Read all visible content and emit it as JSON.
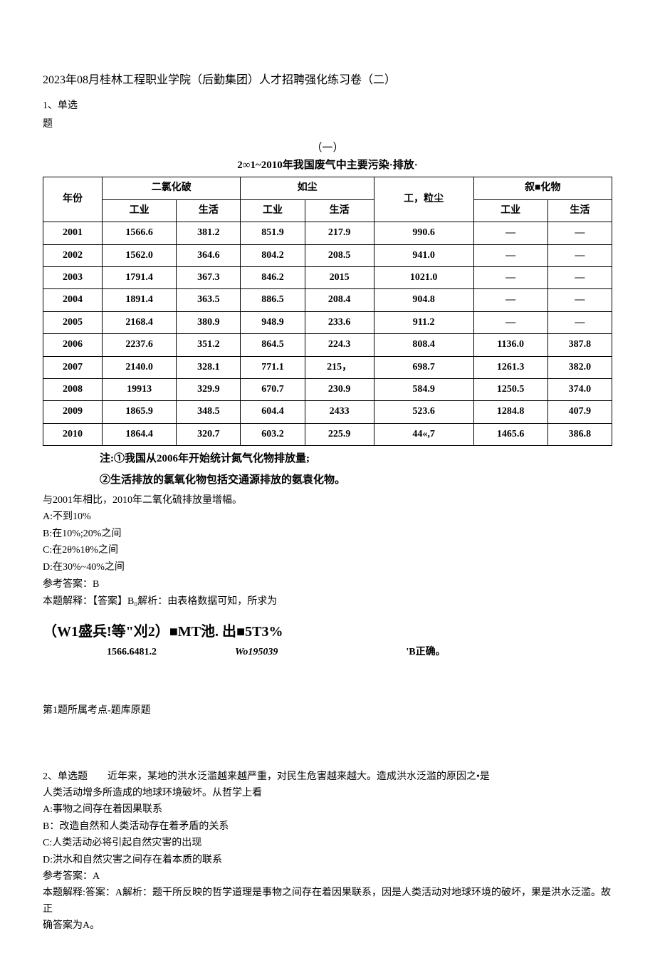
{
  "title": "2023年08月桂林工程职业学院（后勤集团）人才招聘强化练习卷（二）",
  "q1": {
    "label_a": "1、单选",
    "label_b": "题",
    "section_no": "（一）",
    "table_title": "2∞1~2010年我国废气中主要污染·排放·",
    "headers": {
      "year": "年份",
      "so2": "二氯化破",
      "dust": "如尘",
      "industrial_dust": "工，粒尘",
      "nox": "叙■化物",
      "industry": "工业",
      "life": "生活"
    },
    "rows": [
      {
        "year": "2001",
        "so2_i": "1566.6",
        "so2_l": "381.2",
        "d_i": "851.9",
        "d_l": "217.9",
        "id": "990.6",
        "n_i": "—",
        "n_l": "—"
      },
      {
        "year": "2002",
        "so2_i": "1562.0",
        "so2_l": "364.6",
        "d_i": "804.2",
        "d_l": "208.5",
        "id": "941.0",
        "n_i": "—",
        "n_l": "—"
      },
      {
        "year": "2003",
        "so2_i": "1791.4",
        "so2_l": "367.3",
        "d_i": "846.2",
        "d_l": "2015",
        "id": "1021.0",
        "n_i": "—",
        "n_l": "—"
      },
      {
        "year": "2004",
        "so2_i": "1891.4",
        "so2_l": "363.5",
        "d_i": "886.5",
        "d_l": "208.4",
        "id": "904.8",
        "n_i": "—",
        "n_l": "—"
      },
      {
        "year": "2005",
        "so2_i": "2168.4",
        "so2_l": "380.9",
        "d_i": "948.9",
        "d_l": "233.6",
        "id": "911.2",
        "n_i": "—",
        "n_l": "—"
      },
      {
        "year": "2006",
        "so2_i": "2237.6",
        "so2_l": "351.2",
        "d_i": "864.5",
        "d_l": "224.3",
        "id": "808.4",
        "n_i": "1136.0",
        "n_l": "387.8"
      },
      {
        "year": "2007",
        "so2_i": "2140.0",
        "so2_l": "328.1",
        "d_i": "771.1",
        "d_l": "215，",
        "id": "698.7",
        "n_i": "1261.3",
        "n_l": "382.0"
      },
      {
        "year": "2008",
        "so2_i": "19913",
        "so2_l": "329.9",
        "d_i": "670.7",
        "d_l": "230.9",
        "id": "584.9",
        "n_i": "1250.5",
        "n_l": "374.0"
      },
      {
        "year": "2009",
        "so2_i": "1865.9",
        "so2_l": "348.5",
        "d_i": "604.4",
        "d_l": "2433",
        "id": "523.6",
        "n_i": "1284.8",
        "n_l": "407.9"
      },
      {
        "year": "2010",
        "so2_i": "1864.4",
        "so2_l": "320.7",
        "d_i": "603.2",
        "d_l": "225.9",
        "id": "44«,7",
        "n_i": "1465.6",
        "n_l": "386.8"
      }
    ],
    "note1": "注:①我国从2006年开始统计氮气化物排放量;",
    "note2": "②生活排放的氯氧化物包括交通源排放的氨袁化物。",
    "question": "与2001年相比，2010年二氧化硫排放量增幅。",
    "options": {
      "A": "A:不到10%",
      "B": "B:在10%;20%之间",
      "C": "C:在2θ%1θ%之间",
      "D": "D:在30%~40%之间"
    },
    "answer_ref": "参考答案：B",
    "explain": "本题解释：【答案】B₀解析：由表格数据可知，所求为",
    "calc1": "（W1盛兵!等\"刈2）■MT池. 出■5T3%",
    "calc2a": "1566.6481.2",
    "calc2b": "Wo195039",
    "calc2c": "'B正确。",
    "topic_ref": "第1题所属考点-题库原题"
  },
  "q2": {
    "stem1": "2、单选题　　近年来，某地的洪水泛滥越来越严重，对民生危害越来越大。造成洪水泛滥的原因之•是",
    "stem2": "人类活动增多所造成的地球环境破坏。从哲学上看",
    "options": {
      "A": "A:事物之间存在着因果联系",
      "B": "B：改造自然和人类活动存在着矛盾的关系",
      "C": "C:人类活动必将引起自然灾害的出现",
      "D": "D:洪水和自然灾害之间存在着本质的联系"
    },
    "answer_ref": "参考答案：A",
    "explain1": "本题解释:答案：A解析：题干所反映的哲学道理是事物之间存在着因果联系，因是人类活动对地球环境的破坏，果是洪水泛滥。故正",
    "explain2": "确答案为A。"
  }
}
